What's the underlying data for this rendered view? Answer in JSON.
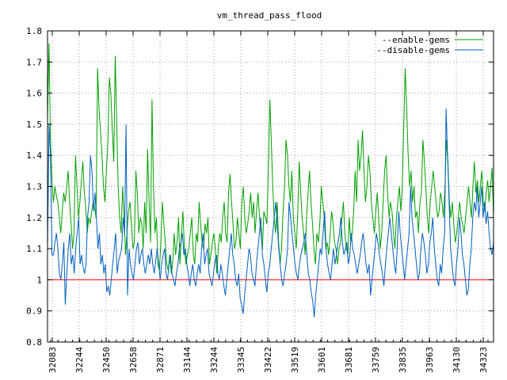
{
  "chart_data": {
    "type": "line",
    "title": "vm_thread_pass_flood",
    "xlabel": "",
    "ylabel": "",
    "ylim": [
      0.8,
      1.8
    ],
    "yticks": [
      0.8,
      0.9,
      1,
      1.1,
      1.2,
      1.3,
      1.4,
      1.5,
      1.6,
      1.7,
      1.8
    ],
    "ytick_labels": [
      "0.8",
      "0.9",
      "1",
      "1.1",
      "1.2",
      "1.3",
      "1.4",
      "1.5",
      "1.6",
      "1.7",
      "1.8"
    ],
    "x_tick_labels": [
      "32083",
      "32244",
      "32450",
      "32658",
      "32871",
      "33144",
      "33244",
      "33345",
      "33422",
      "33519",
      "33601",
      "33681",
      "33759",
      "33835",
      "33963",
      "34130",
      "34323"
    ],
    "grid": true,
    "legend_position": "top-right",
    "reference_line": {
      "y": 1.0,
      "color": "#ff0000"
    },
    "series": [
      {
        "name": "--enable-gems",
        "color": "#00a000",
        "values": [
          1.52,
          1.76,
          1.45,
          1.32,
          1.25,
          1.3,
          1.27,
          1.25,
          1.2,
          1.15,
          1.22,
          1.28,
          1.25,
          1.3,
          1.35,
          1.25,
          1.18,
          1.1,
          1.15,
          1.4,
          1.3,
          1.2,
          1.25,
          1.32,
          1.38,
          1.28,
          1.23,
          1.15,
          1.2,
          1.18,
          1.22,
          1.25,
          1.23,
          1.2,
          1.68,
          1.55,
          1.48,
          1.4,
          1.3,
          1.25,
          1.35,
          1.44,
          1.65,
          1.6,
          1.48,
          1.38,
          1.72,
          1.5,
          1.3,
          1.2,
          1.15,
          1.3,
          1.2,
          1.08,
          1.15,
          1.22,
          1.25,
          1.18,
          1.1,
          1.12,
          1.35,
          1.28,
          1.15,
          1.2,
          1.18,
          1.1,
          1.25,
          1.15,
          1.42,
          1.25,
          1.12,
          1.58,
          1.3,
          1.15,
          1.2,
          1.05,
          1.03,
          1.12,
          1.25,
          1.18,
          1.12,
          1.05,
          1.03,
          1.08,
          1.02,
          1.05,
          1.15,
          1.08,
          1.12,
          1.2,
          1.05,
          1.15,
          1.22,
          1.1,
          1.05,
          1.08,
          1.1,
          1.15,
          1.2,
          1.08,
          1.05,
          1.15,
          1.12,
          1.25,
          1.18,
          1.12,
          1.1,
          1.18,
          1.15,
          1.2,
          1.05,
          1.08,
          1.12,
          1.15,
          1.1,
          1.02,
          1.1,
          1.15,
          1.12,
          1.2,
          1.25,
          1.15,
          1.12,
          1.28,
          1.34,
          1.25,
          1.18,
          1.1,
          1.12,
          1.2,
          1.15,
          1.1,
          1.25,
          1.3,
          1.2,
          1.15,
          1.18,
          1.22,
          1.28,
          1.2,
          1.25,
          1.15,
          1.22,
          1.28,
          1.2,
          1.15,
          1.1,
          1.22,
          1.2,
          1.18,
          1.35,
          1.58,
          1.45,
          1.3,
          1.2,
          1.15,
          1.25,
          1.12,
          1.05,
          1.1,
          1.22,
          1.3,
          1.45,
          1.4,
          1.3,
          1.25,
          1.35,
          1.2,
          1.15,
          1.1,
          1.22,
          1.38,
          1.28,
          1.2,
          1.15,
          1.08,
          1.2,
          1.28,
          1.35,
          1.25,
          1.18,
          1.1,
          1.05,
          1.15,
          1.12,
          1.18,
          1.3,
          1.25,
          1.2,
          1.1,
          1.12,
          1.08,
          1.15,
          1.22,
          1.18,
          1.12,
          1.1,
          1.05,
          1.1,
          1.12,
          1.2,
          1.25,
          1.15,
          1.1,
          1.08,
          1.2,
          1.12,
          1.15,
          1.22,
          1.35,
          1.25,
          1.45,
          1.35,
          1.4,
          1.48,
          1.35,
          1.25,
          1.3,
          1.4,
          1.35,
          1.25,
          1.2,
          1.15,
          1.22,
          1.28,
          1.2,
          1.1,
          1.15,
          1.25,
          1.35,
          1.4,
          1.28,
          1.2,
          1.25,
          1.22,
          1.15,
          1.1,
          1.2,
          1.25,
          1.3,
          1.22,
          1.3,
          1.5,
          1.68,
          1.55,
          1.4,
          1.3,
          1.35,
          1.25,
          1.3,
          1.2,
          1.22,
          1.15,
          1.25,
          1.28,
          1.45,
          1.38,
          1.3,
          1.2,
          1.15,
          1.25,
          1.3,
          1.35,
          1.3,
          1.25,
          1.2,
          1.22,
          1.28,
          1.25,
          1.2,
          1.3,
          1.45,
          1.38,
          1.25,
          1.2,
          1.25,
          1.18,
          1.12,
          1.15,
          1.2,
          1.25,
          1.2,
          1.18,
          1.15,
          1.2,
          1.25,
          1.3,
          1.25,
          1.2,
          1.3,
          1.38,
          1.28,
          1.32,
          1.25,
          1.3,
          1.35,
          1.25,
          1.22,
          1.28,
          1.32,
          1.25,
          1.3,
          1.36,
          1.2
        ]
      },
      {
        "name": "--disable-gems",
        "color": "#0060c0",
        "values": [
          1.1,
          1.5,
          1.4,
          1.08,
          1.08,
          1.12,
          1.15,
          1.1,
          1.02,
          1.0,
          1.05,
          1.12,
          0.92,
          1.02,
          1.1,
          1.15,
          1.05,
          1.08,
          1.02,
          1.1,
          1.15,
          1.2,
          1.05,
          1.08,
          1.04,
          1.02,
          1.05,
          1.2,
          1.25,
          1.4,
          1.35,
          1.22,
          1.28,
          1.2,
          1.1,
          1.15,
          1.05,
          1.08,
          1.02,
          1.05,
          0.96,
          0.98,
          0.95,
          1.0,
          1.05,
          1.1,
          1.15,
          1.02,
          1.06,
          1.08,
          1.1,
          1.2,
          1.15,
          1.5,
          0.95,
          1.1,
          1.05,
          1.02,
          1.0,
          1.05,
          1.1,
          1.12,
          1.05,
          1.08,
          1.1,
          1.05,
          1.02,
          1.05,
          1.08,
          1.05,
          1.1,
          1.05,
          1.02,
          1.06,
          1.1,
          1.05,
          1.0,
          1.05,
          1.08,
          1.1,
          1.02,
          1.0,
          1.05,
          1.08,
          1.02,
          1.0,
          0.98,
          1.02,
          1.05,
          1.1,
          1.12,
          1.15,
          1.08,
          1.1,
          1.05,
          1.02,
          0.98,
          1.02,
          1.05,
          1.0,
          0.98,
          1.02,
          1.05,
          1.02,
          1.1,
          1.15,
          1.05,
          1.08,
          1.1,
          1.02,
          1.0,
          0.98,
          1.02,
          1.06,
          1.08,
          1.02,
          1.0,
          1.05,
          1.02,
          0.98,
          0.95,
          1.0,
          1.05,
          1.1,
          1.15,
          1.08,
          1.05,
          1.0,
          0.98,
          1.02,
          0.94,
          0.92,
          0.89,
          0.95,
          1.0,
          1.05,
          1.1,
          1.08,
          1.02,
          1.0,
          0.98,
          1.05,
          1.1,
          1.15,
          1.2,
          1.08,
          1.05,
          1.0,
          0.96,
          1.02,
          1.05,
          1.1,
          1.15,
          1.2,
          1.25,
          1.18,
          1.1,
          1.05,
          1.0,
          0.98,
          1.02,
          1.05,
          1.1,
          1.25,
          1.2,
          1.15,
          1.1,
          1.05,
          1.02,
          1.0,
          1.05,
          1.08,
          1.1,
          1.12,
          1.15,
          1.08,
          1.02,
          1.0,
          0.96,
          0.93,
          0.88,
          0.95,
          1.0,
          1.05,
          1.1,
          1.08,
          1.15,
          1.22,
          1.1,
          1.05,
          1.02,
          1.0,
          1.05,
          1.1,
          1.05,
          1.08,
          1.12,
          1.15,
          1.2,
          1.12,
          1.08,
          1.1,
          1.12,
          1.05,
          1.08,
          1.15,
          1.1,
          1.08,
          1.05,
          1.02,
          1.05,
          1.08,
          1.12,
          1.15,
          1.1,
          1.05,
          1.02,
          1.05,
          0.95,
          1.0,
          1.05,
          1.1,
          1.15,
          1.12,
          1.08,
          1.05,
          1.02,
          0.98,
          1.05,
          1.1,
          1.15,
          1.2,
          1.15,
          1.1,
          1.05,
          1.02,
          1.1,
          1.22,
          1.15,
          1.1,
          1.05,
          1.0,
          1.05,
          1.1,
          1.15,
          1.3,
          1.2,
          1.15,
          1.1,
          1.05,
          1.0,
          1.02,
          1.1,
          1.15,
          1.12,
          1.08,
          1.02,
          1.05,
          1.12,
          1.15,
          1.2,
          1.1,
          1.05,
          1.0,
          0.98,
          1.05,
          1.02,
          1.1,
          1.15,
          1.55,
          1.4,
          1.25,
          1.1,
          1.05,
          1.0,
          0.98,
          1.05,
          1.1,
          1.2,
          1.15,
          1.08,
          1.05,
          1.0,
          0.95,
          0.97,
          1.05,
          1.1,
          1.2,
          1.25,
          1.22,
          1.3,
          1.2,
          1.25,
          1.3,
          1.2,
          1.25,
          1.18,
          1.22,
          1.15,
          1.1,
          1.08,
          1.12
        ]
      }
    ]
  }
}
